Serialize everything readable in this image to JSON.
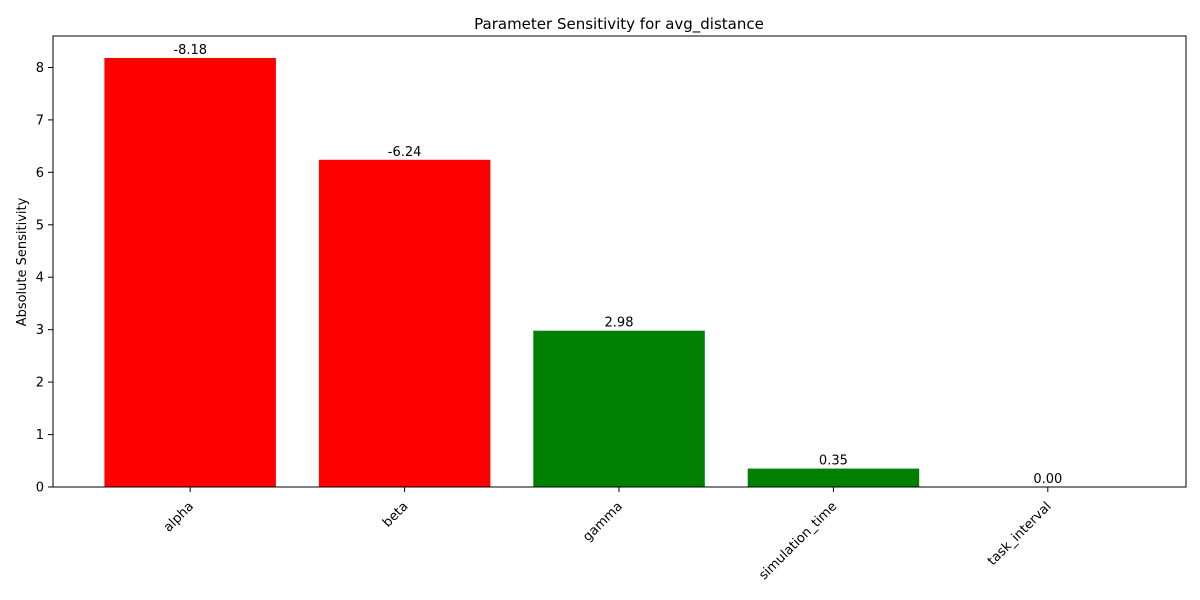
{
  "chart_data": {
    "type": "bar",
    "title": "Parameter Sensitivity for avg_distance",
    "xlabel": "",
    "ylabel": "Absolute Sensitivity",
    "categories": [
      "alpha",
      "beta",
      "gamma",
      "simulation_time",
      "task_interval"
    ],
    "values": [
      8.18,
      6.24,
      2.98,
      0.35,
      0.0
    ],
    "bar_labels": [
      "-8.18",
      "-6.24",
      "2.98",
      "0.35",
      "0.00"
    ],
    "colors": [
      "#ff0000",
      "#ff0000",
      "#008000",
      "#008000",
      "#008000"
    ],
    "ylim": [
      0,
      8.6
    ],
    "yticks": [
      0,
      1,
      2,
      3,
      4,
      5,
      6,
      7,
      8
    ],
    "grid": false,
    "x_tick_rotation": 45
  }
}
